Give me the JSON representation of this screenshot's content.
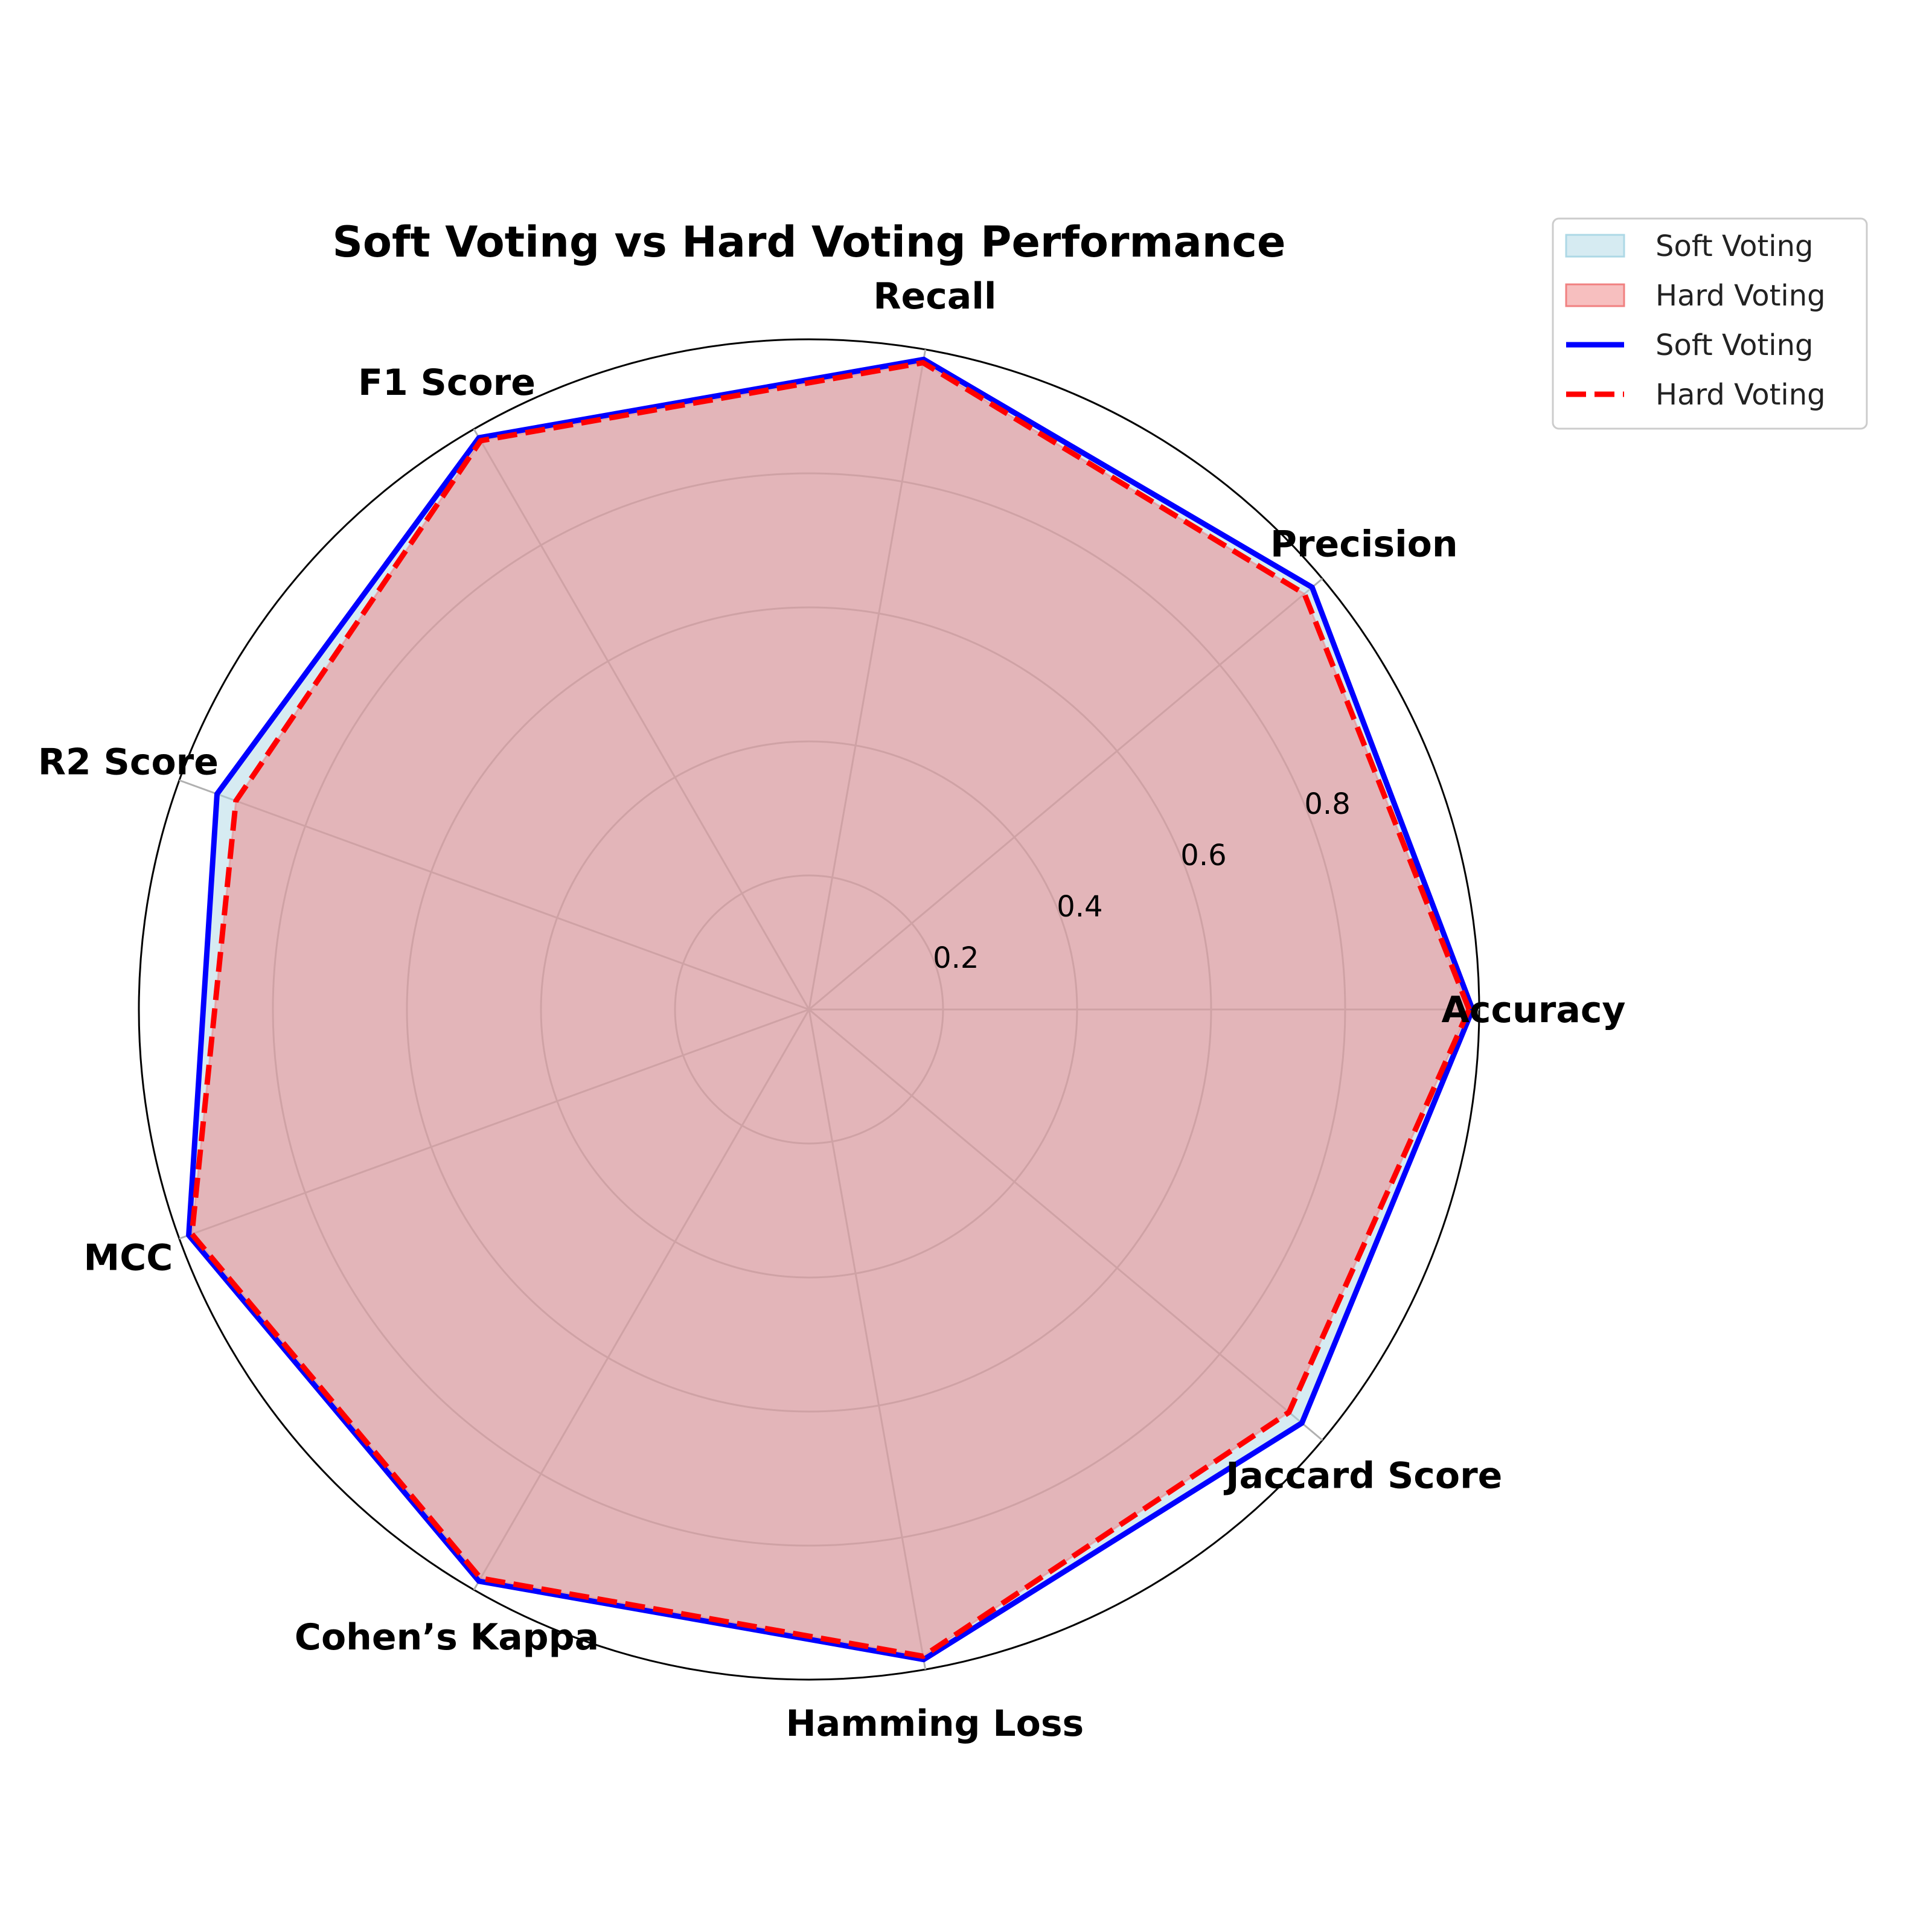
{
  "chart_data": {
    "type": "radar",
    "title": "Soft Voting vs Hard Voting Performance",
    "categories": [
      "Accuracy",
      "Precision",
      "Recall",
      "F1 Score",
      "R2 Score",
      "MCC",
      "Cohen’s Kappa",
      "Hamming Loss",
      "Jaccard Score"
    ],
    "rticks": [
      0.2,
      0.4,
      0.6,
      0.8,
      1.0
    ],
    "rtick_labels": [
      "0.2",
      "0.4",
      "0.6",
      "0.8"
    ],
    "rlim": [
      0,
      1
    ],
    "grid": true,
    "legend_position": "upper-right",
    "series": [
      {
        "name": "Soft Voting",
        "values": [
          0.99,
          0.98,
          0.985,
          0.985,
          0.94,
          0.985,
          0.985,
          0.985,
          0.96
        ],
        "line_color": "#0000ff",
        "line_style": "solid",
        "fill_color": "#add8e6"
      },
      {
        "name": "Hard Voting",
        "values": [
          0.985,
          0.965,
          0.98,
          0.98,
          0.91,
          0.98,
          0.98,
          0.98,
          0.935
        ],
        "line_color": "#ff0000",
        "line_style": "dashed",
        "fill_color": "#f08080"
      }
    ],
    "legend": [
      {
        "label": "Soft Voting",
        "kind": "fill",
        "color": "#add8e6"
      },
      {
        "label": "Hard Voting",
        "kind": "fill",
        "color": "#f08080"
      },
      {
        "label": "Soft Voting",
        "kind": "line",
        "color": "#0000ff"
      },
      {
        "label": "Hard Voting",
        "kind": "line-dashed",
        "color": "#ff0000"
      }
    ]
  }
}
